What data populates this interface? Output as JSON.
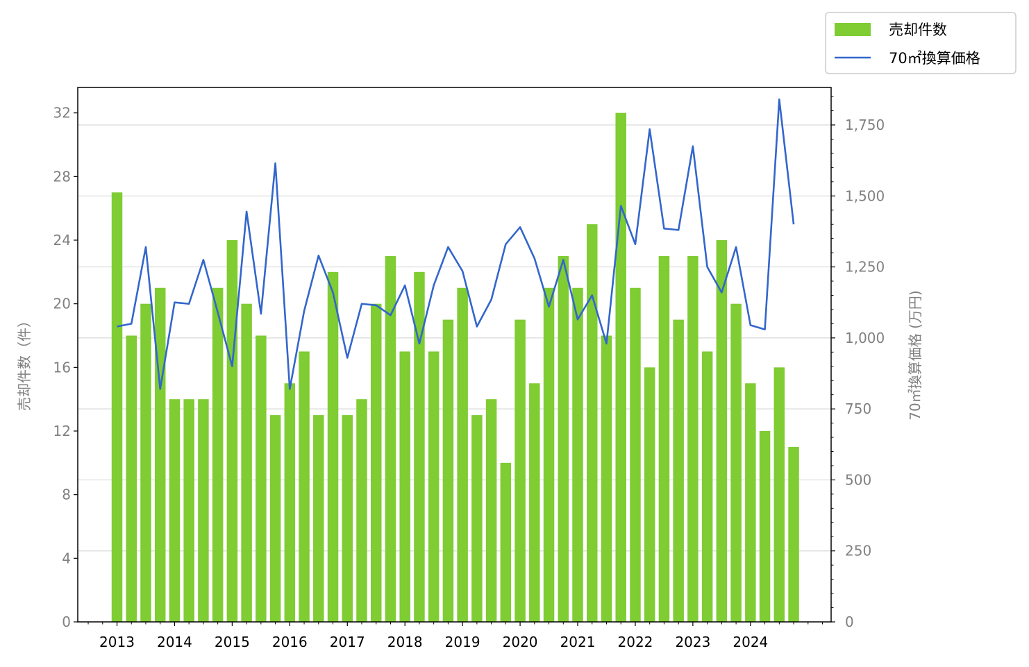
{
  "chart_data": {
    "type": "bar",
    "title": "",
    "xlabel": "",
    "ylabel": "売却件数（件）",
    "y2label": "70㎡換算価格 (万円)",
    "x_tick_labels": [
      "2013",
      "2014",
      "2015",
      "2016",
      "2017",
      "2018",
      "2019",
      "2020",
      "2021",
      "2022",
      "2023",
      "2024"
    ],
    "ylim": [
      0,
      33.6
    ],
    "y_ticks": [
      0,
      4,
      8,
      12,
      16,
      20,
      24,
      28,
      32
    ],
    "y2lim": [
      0,
      1882
    ],
    "y2_ticks": [
      0,
      250,
      500,
      750,
      1000,
      1250,
      1500,
      1750
    ],
    "y2_tick_labels": [
      "0",
      "250",
      "500",
      "750",
      "1,000",
      "1,250",
      "1,500",
      "1,750"
    ],
    "grid": "horizontal (right axis)",
    "legend_position": "top-right",
    "series": [
      {
        "name": "売却件数",
        "type": "bar",
        "axis": "left",
        "color": "#7fcc33",
        "values": [
          27,
          18,
          20,
          21,
          14,
          14,
          14,
          21,
          24,
          20,
          18,
          13,
          15,
          17,
          13,
          22,
          13,
          14,
          20,
          23,
          17,
          22,
          17,
          19,
          21,
          13,
          14,
          10,
          19,
          15,
          21,
          23,
          21,
          25,
          18,
          32,
          21,
          16,
          23,
          19,
          23,
          17,
          24,
          20,
          15,
          12,
          16,
          11
        ]
      },
      {
        "name": "70㎡換算価格",
        "type": "line",
        "axis": "right",
        "color": "#3366cc",
        "values": [
          1040,
          1050,
          1320,
          820,
          1125,
          1120,
          1275,
          1090,
          900,
          1445,
          1085,
          1615,
          820,
          1095,
          1290,
          1160,
          930,
          1120,
          1115,
          1080,
          1185,
          980,
          1185,
          1320,
          1235,
          1040,
          1135,
          1330,
          1390,
          1280,
          1110,
          1275,
          1065,
          1150,
          980,
          1465,
          1330,
          1735,
          1385,
          1380,
          1675,
          1250,
          1160,
          1320,
          1045,
          1030,
          1840,
          1400
        ]
      }
    ]
  }
}
